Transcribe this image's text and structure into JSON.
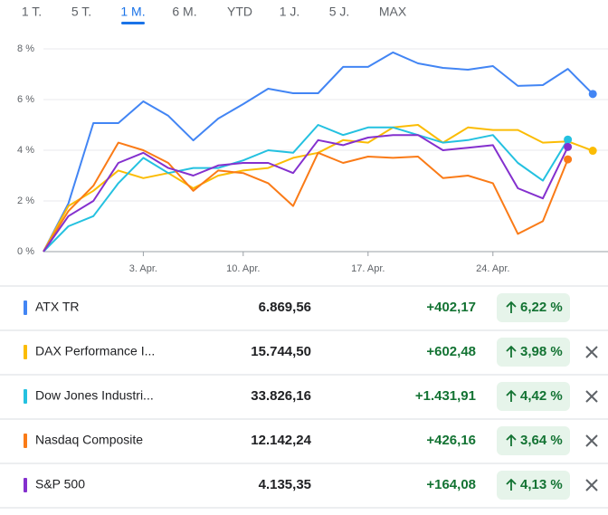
{
  "tabs": [
    "1 T.",
    "5 T.",
    "1 M.",
    "6 M.",
    "YTD",
    "1 J.",
    "5 J.",
    "MAX"
  ],
  "active_tab": 2,
  "chart_data": {
    "type": "line",
    "categories": [
      null,
      null,
      null,
      null,
      "3. Apr.",
      null,
      null,
      null,
      "10. Apr.",
      null,
      null,
      null,
      null,
      "17. Apr.",
      null,
      null,
      null,
      null,
      "24. Apr.",
      null,
      null,
      null,
      null
    ],
    "series": [
      {
        "name": "ATX TR",
        "color": "#4285f4",
        "values": [
          0,
          1.9,
          5.07,
          5.07,
          5.93,
          5.36,
          4.39,
          5.25,
          5.82,
          6.43,
          6.25,
          6.25,
          7.29,
          7.29,
          7.86,
          7.43,
          7.25,
          7.18,
          7.32,
          6.54,
          6.57,
          7.21,
          6.22
        ]
      },
      {
        "name": "DAX Performance I...",
        "color": "#fbbc04",
        "values": [
          0,
          1.8,
          2.4,
          3.2,
          2.9,
          3.1,
          2.5,
          3.0,
          3.2,
          3.3,
          3.7,
          3.9,
          4.4,
          4.3,
          4.9,
          5.0,
          4.3,
          4.9,
          4.8,
          4.8,
          4.3,
          4.35,
          3.98
        ]
      },
      {
        "name": "Dow Jones Industri...",
        "color": "#24c1e0",
        "values": [
          0,
          1.0,
          1.4,
          2.7,
          3.7,
          3.1,
          3.3,
          3.3,
          3.6,
          4.0,
          3.9,
          5.0,
          4.6,
          4.9,
          4.9,
          4.6,
          4.3,
          4.4,
          4.6,
          3.5,
          2.8,
          4.42,
          null
        ]
      },
      {
        "name": "Nasdaq Composite",
        "color": "#fa7b17",
        "values": [
          0,
          1.6,
          2.6,
          4.3,
          4.0,
          3.5,
          2.4,
          3.2,
          3.1,
          2.7,
          1.8,
          3.9,
          3.5,
          3.75,
          3.7,
          3.75,
          2.9,
          3.0,
          2.7,
          0.7,
          1.2,
          3.64,
          null
        ]
      },
      {
        "name": "S&P 500",
        "color": "#8430ce",
        "values": [
          0,
          1.4,
          2.0,
          3.5,
          3.9,
          3.3,
          3.0,
          3.4,
          3.5,
          3.5,
          3.1,
          4.4,
          4.2,
          4.5,
          4.6,
          4.6,
          4.0,
          4.1,
          4.2,
          2.5,
          2.1,
          4.13,
          null
        ]
      }
    ],
    "ylim": [
      0,
      8
    ],
    "yticks": [
      {
        "value": 0,
        "label": "0 %"
      },
      {
        "value": 2,
        "label": "2 %"
      },
      {
        "value": 4,
        "label": "4 %"
      },
      {
        "value": 6,
        "label": "6 %"
      },
      {
        "value": 8,
        "label": "8 %"
      }
    ],
    "grid": true
  },
  "table": {
    "rows": [
      {
        "name": "ATX TR",
        "price": "6.869,56",
        "change": "+402,17",
        "percent": "6,22 %",
        "removable": false
      },
      {
        "name": "DAX Performance I...",
        "price": "15.744,50",
        "change": "+602,48",
        "percent": "3,98 %",
        "removable": true
      },
      {
        "name": "Dow Jones Industri...",
        "price": "33.826,16",
        "change": "+1.431,91",
        "percent": "4,42 %",
        "removable": true
      },
      {
        "name": "Nasdaq Composite",
        "price": "12.142,24",
        "change": "+426,16",
        "percent": "3,64 %",
        "removable": true
      },
      {
        "name": "S&P 500",
        "price": "4.135,35",
        "change": "+164,08",
        "percent": "4,13 %",
        "removable": true
      }
    ]
  }
}
